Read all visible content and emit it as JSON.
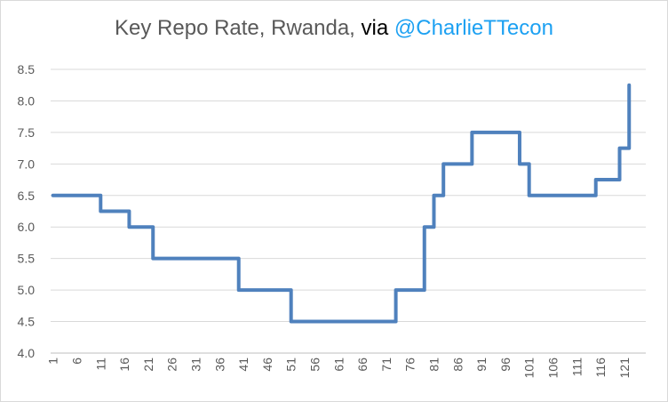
{
  "chart_data": {
    "type": "line",
    "title": {
      "main": "Key Repo Rate, Rwanda,",
      "via": "via",
      "handle": "@CharlieTTecon"
    },
    "xlabel": "",
    "ylabel": "",
    "ylim": [
      4.0,
      8.5
    ],
    "yticks": [
      "4.0",
      "4.5",
      "5.0",
      "5.5",
      "6.0",
      "6.5",
      "7.0",
      "7.5",
      "8.0",
      "8.5"
    ],
    "xticks": [
      "1",
      "6",
      "11",
      "16",
      "21",
      "26",
      "31",
      "36",
      "41",
      "46",
      "51",
      "56",
      "61",
      "66",
      "71",
      "76",
      "81",
      "86",
      "91",
      "96",
      "101",
      "106",
      "111",
      "116",
      "121"
    ],
    "x_count": 125,
    "grid": true,
    "line_color": "#4f81bd",
    "series": [
      {
        "segments": [
          {
            "from": 1,
            "to": 10,
            "value": 6.5
          },
          {
            "from": 11,
            "to": 16,
            "value": 6.25
          },
          {
            "from": 17,
            "to": 21,
            "value": 6.0
          },
          {
            "from": 22,
            "to": 39,
            "value": 5.5
          },
          {
            "from": 40,
            "to": 50,
            "value": 5.0
          },
          {
            "from": 51,
            "to": 72,
            "value": 4.5
          },
          {
            "from": 73,
            "to": 78,
            "value": 5.0
          },
          {
            "from": 79,
            "to": 80,
            "value": 6.0
          },
          {
            "from": 81,
            "to": 82,
            "value": 6.5
          },
          {
            "from": 83,
            "to": 88,
            "value": 7.0
          },
          {
            "from": 89,
            "to": 98,
            "value": 7.5
          },
          {
            "from": 99,
            "to": 100,
            "value": 7.0
          },
          {
            "from": 101,
            "to": 114,
            "value": 6.5
          },
          {
            "from": 115,
            "to": 119,
            "value": 6.75
          },
          {
            "from": 120,
            "to": 121,
            "value": 7.25
          },
          {
            "from": 122,
            "to": 122,
            "value": 8.25
          }
        ]
      }
    ]
  }
}
